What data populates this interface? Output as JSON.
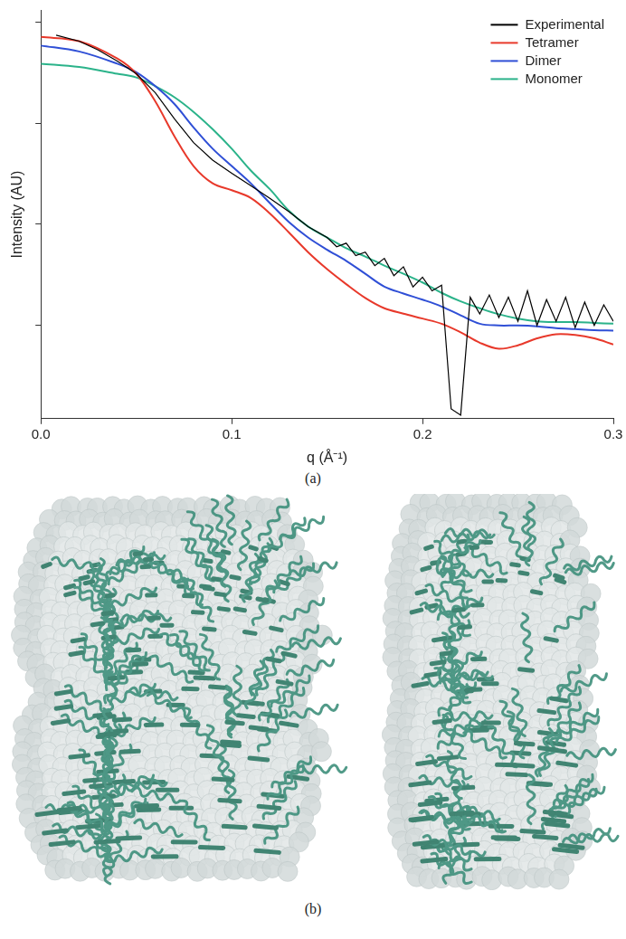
{
  "chart_data": {
    "type": "line",
    "x_label": "q (Å⁻¹)",
    "y_label": "Intensity (AU)",
    "log": "y",
    "grid": false,
    "legend": "upper right",
    "tick_labels": "x",
    "xlim": [
      0,
      0.3
    ],
    "xticks": [
      {
        "value": 0,
        "label": "0.0"
      },
      0.1,
      0.2,
      0.3
    ],
    "ylim": [
      0.12,
      1300
    ],
    "yticks": [
      1,
      10,
      100,
      1000
    ],
    "series": [
      {
        "name": "Experimental",
        "color": "#000000",
        "x": [
          0.008,
          0.02,
          0.03,
          0.04,
          0.05,
          0.06,
          0.07,
          0.08,
          0.09,
          0.1,
          0.11,
          0.12,
          0.13,
          0.14,
          0.15,
          0.155,
          0.16,
          0.165,
          0.17,
          0.175,
          0.18,
          0.185,
          0.19,
          0.195,
          0.2,
          0.205,
          0.21,
          0.215,
          0.22,
          0.225,
          0.23,
          0.235,
          0.24,
          0.245,
          0.25,
          0.255,
          0.26,
          0.265,
          0.27,
          0.275,
          0.28,
          0.285,
          0.29,
          0.295,
          0.3
        ],
        "values": [
          738,
          644,
          528,
          410,
          307,
          199,
          110,
          64,
          43,
          32,
          24,
          18,
          13.3,
          9.5,
          7.4,
          6.0,
          6.5,
          4.9,
          5.3,
          3.9,
          4.6,
          3.1,
          3.8,
          2.4,
          3.0,
          2.2,
          2.5,
          0.15,
          0.13,
          1.9,
          1.3,
          2.0,
          1.2,
          1.9,
          1.1,
          2.2,
          1.0,
          1.8,
          1.1,
          1.9,
          0.95,
          1.7,
          1.0,
          1.6,
          1.1
        ]
      },
      {
        "name": "Tetramer",
        "color": "#e8392b",
        "x": [
          0,
          0.02,
          0.04,
          0.05,
          0.06,
          0.07,
          0.08,
          0.09,
          0.1,
          0.11,
          0.12,
          0.13,
          0.14,
          0.15,
          0.16,
          0.17,
          0.18,
          0.19,
          0.2,
          0.21,
          0.22,
          0.23,
          0.24,
          0.25,
          0.26,
          0.27,
          0.28,
          0.29,
          0.3
        ],
        "values": [
          710,
          644,
          434,
          307,
          163,
          74,
          37.6,
          25.4,
          21.7,
          18.2,
          12.8,
          8.3,
          5.3,
          3.6,
          2.56,
          1.87,
          1.48,
          1.31,
          1.17,
          1.04,
          0.855,
          0.676,
          0.589,
          0.637,
          0.745,
          0.82,
          0.806,
          0.745,
          0.65
        ]
      },
      {
        "name": "Dimer",
        "color": "#2f4fd6",
        "x": [
          0,
          0.02,
          0.04,
          0.05,
          0.06,
          0.07,
          0.08,
          0.09,
          0.1,
          0.11,
          0.12,
          0.13,
          0.14,
          0.15,
          0.16,
          0.17,
          0.18,
          0.19,
          0.2,
          0.21,
          0.22,
          0.23,
          0.24,
          0.25,
          0.26,
          0.27,
          0.28,
          0.29,
          0.3
        ],
        "values": [
          583,
          510,
          386,
          318,
          231,
          154,
          90.6,
          55.8,
          37.6,
          25.4,
          16.2,
          10.5,
          7.4,
          5.6,
          4.35,
          3.24,
          2.42,
          2.07,
          1.8,
          1.54,
          1.26,
          1.04,
          1.0,
          1.0,
          0.98,
          0.94,
          0.92,
          0.9,
          0.89
        ]
      },
      {
        "name": "Monomer",
        "color": "#2bb38a",
        "x": [
          0,
          0.02,
          0.04,
          0.05,
          0.06,
          0.07,
          0.08,
          0.09,
          0.1,
          0.11,
          0.12,
          0.13,
          0.14,
          0.15,
          0.16,
          0.17,
          0.18,
          0.19,
          0.2,
          0.21,
          0.22,
          0.23,
          0.24,
          0.25,
          0.26,
          0.27,
          0.28,
          0.29,
          0.3
        ],
        "values": [
          386,
          358,
          307,
          282,
          231,
          180,
          129,
          87,
          55.8,
          34,
          22.2,
          13.6,
          9.5,
          7.4,
          5.8,
          4.8,
          3.9,
          3.24,
          2.66,
          2.1,
          1.73,
          1.48,
          1.29,
          1.17,
          1.1,
          1.08,
          1.08,
          1.06,
          1.04
        ]
      }
    ]
  },
  "panel_labels": [
    "(a)",
    "(b)"
  ]
}
